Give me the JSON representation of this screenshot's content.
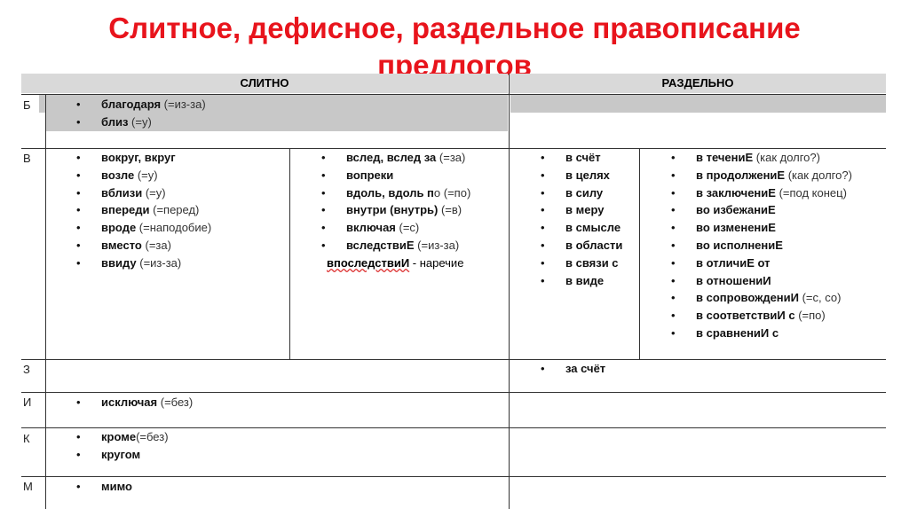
{
  "title": {
    "line1": "Слитное, дефисное, раздельное правописание",
    "line2": "предлогов"
  },
  "headers": {
    "together": "СЛИТНО",
    "separate": "РАЗДЕЛЬНО"
  },
  "rows": {
    "b": {
      "letter": "Б",
      "together": [
        {
          "b": "благодаря",
          "n": " (=из-за)"
        },
        {
          "b": "близ",
          "n": " (=у)"
        }
      ]
    },
    "v": {
      "letter": "В",
      "together1": [
        {
          "b": "вокруг, вкруг",
          "n": ""
        },
        {
          "b": "возле",
          "n": " (=у)"
        },
        {
          "b": "вблизи",
          "n": " (=у)"
        },
        {
          "b": "впереди",
          "n": " (=перед)"
        },
        {
          "b": "вроде",
          "n": " (=наподобие)"
        },
        {
          "b": "вместо",
          "n": " (=за)"
        },
        {
          "b": "ввиду",
          "n": " (=из-за)"
        }
      ],
      "together2": [
        {
          "b": "вслед, вслед  за",
          "n": " (=за)"
        },
        {
          "b": "вопреки",
          "n": ""
        },
        {
          "b": "вдоль, вдоль п",
          "n": "о (=по)"
        },
        {
          "b": "внутри (внутрь)",
          "n": " (=в)"
        },
        {
          "b": "включая",
          "n": " (=с)"
        },
        {
          "b": "вследствиЕ",
          "n": " (=из-за)"
        }
      ],
      "note": {
        "b": "впоследствиИ",
        "n": " - наречие"
      },
      "separate1": [
        {
          "b": "в счёт",
          "n": ""
        },
        {
          "b": "в целях",
          "n": ""
        },
        {
          "b": "в силу",
          "n": ""
        },
        {
          "b": "в меру",
          "n": ""
        },
        {
          "b": "в смысле",
          "n": ""
        },
        {
          "b": "в области",
          "n": ""
        },
        {
          "b": "в связи с",
          "n": ""
        },
        {
          "b": "в виде",
          "n": ""
        }
      ],
      "separate2": [
        {
          "b": "в течениЕ",
          "n": " (как долго?)"
        },
        {
          "b": "в продолжениЕ",
          "n": " (как долго?)"
        },
        {
          "b": "в заключениЕ",
          "n": " (=под конец)"
        },
        {
          "b": "во избежаниЕ",
          "n": ""
        },
        {
          "b": "во изменениЕ",
          "n": ""
        },
        {
          "b": "во исполнениЕ",
          "n": ""
        },
        {
          "b": "в  отличиЕ от",
          "n": ""
        },
        {
          "b": "в отношениИ",
          "n": ""
        },
        {
          "b": "в сопровождениИ",
          "n": " (=с, со)"
        },
        {
          "b": "в соответствиИ с",
          "n": " (=по)"
        },
        {
          "b": "в сравнениИ с",
          "n": ""
        }
      ]
    },
    "z": {
      "letter": "З",
      "separate": [
        {
          "b": "за  счёт",
          "n": ""
        }
      ]
    },
    "i": {
      "letter": "И",
      "together": [
        {
          "b": "исключая",
          "n": " (=без)"
        }
      ]
    },
    "k": {
      "letter": "К",
      "together": [
        {
          "b": "кроме",
          "n": "(=без)"
        },
        {
          "b": "кругом",
          "n": ""
        }
      ]
    },
    "m": {
      "letter": "М",
      "together": [
        {
          "b": "мимо",
          "n": ""
        }
      ]
    }
  }
}
